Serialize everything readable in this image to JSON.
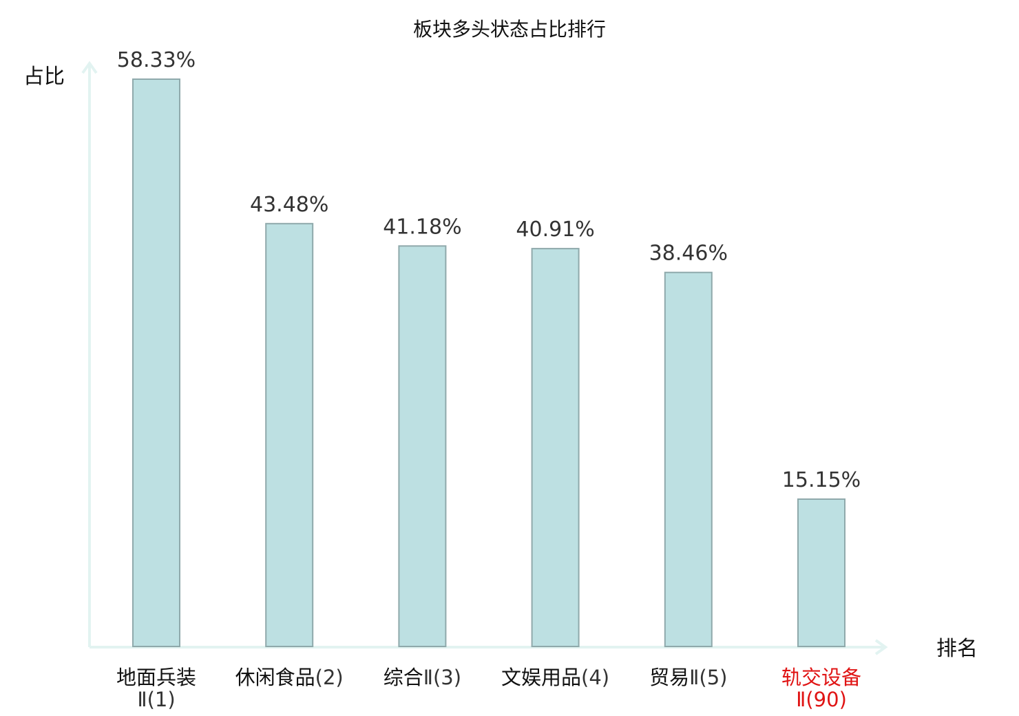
{
  "chart_data": {
    "type": "bar",
    "title": "板块多头状态占比排行",
    "ylabel": "占比",
    "xlabel": "排名",
    "ylim": [
      0,
      62
    ],
    "grid": false,
    "categories": [
      {
        "name": "地面兵装",
        "code": "Ⅱ(1)",
        "highlight": false
      },
      {
        "name": "休闲食品",
        "code": "(2)",
        "highlight": false
      },
      {
        "name": "综合",
        "code": "Ⅱ(3)",
        "highlight": false
      },
      {
        "name": "文娱用品",
        "code": "(4)",
        "highlight": false
      },
      {
        "name": "贸易",
        "code": "Ⅱ(5)",
        "highlight": false
      },
      {
        "name": "轨交设备",
        "code": "Ⅱ(90)",
        "highlight": true
      }
    ],
    "values": [
      58.33,
      43.48,
      41.18,
      40.91,
      38.46,
      15.15
    ],
    "value_labels": [
      "58.33%",
      "43.48%",
      "41.18%",
      "40.91%",
      "38.46%",
      "15.15%"
    ],
    "colors": {
      "bar_fill": "#bde0e2",
      "bar_stroke": "#8fa9ab",
      "axis": "#e2f3f1",
      "label_normal": "#111111",
      "code_normal": "#333333",
      "label_highlight": "#e01414"
    }
  }
}
